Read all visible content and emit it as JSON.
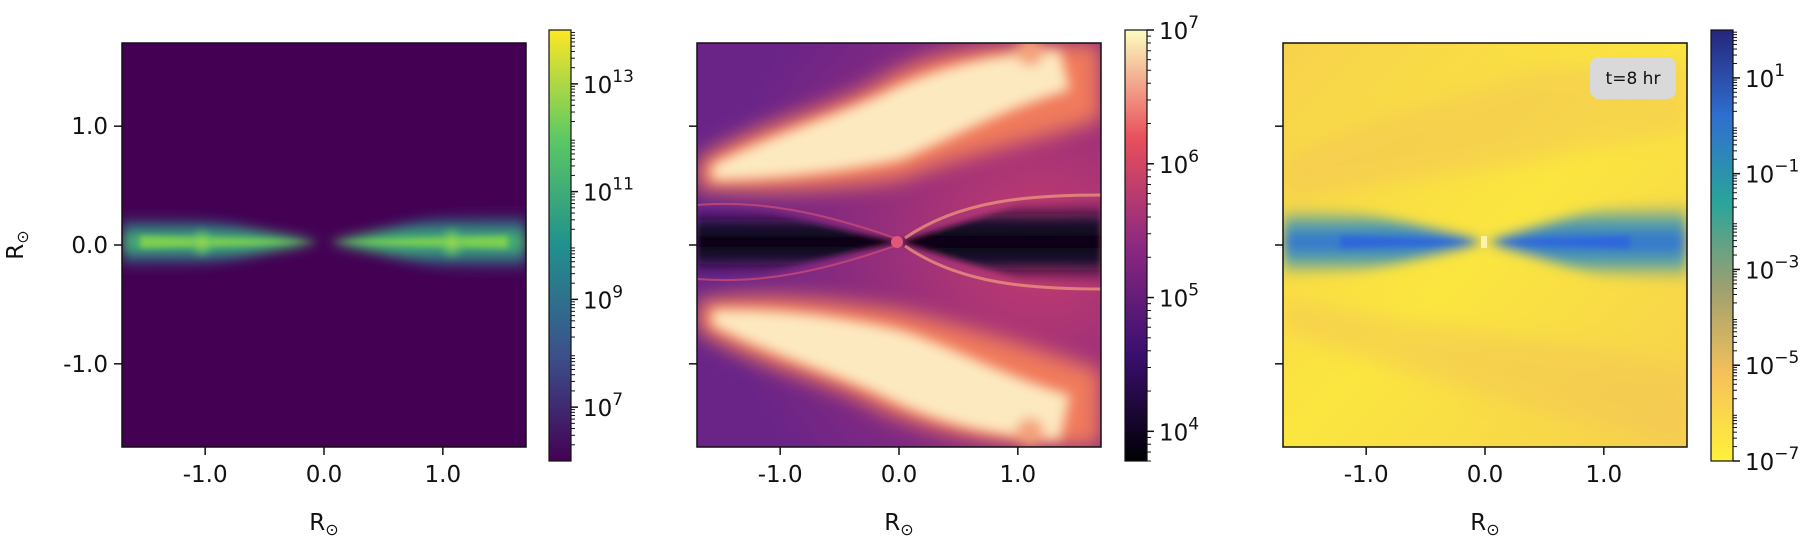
{
  "chart_data": [
    {
      "type": "heatmap",
      "colormap": "viridis",
      "colorbar_scale": "log",
      "colorbar_range": [
        1000000.0,
        100000000000000.0
      ],
      "colorbar_ticks": [
        {
          "value": 10000000.0,
          "base": "10",
          "exp": "7"
        },
        {
          "value": 1000000000.0,
          "base": "10",
          "exp": "9"
        },
        {
          "value": 100000000000.0,
          "base": "10",
          "exp": "11"
        },
        {
          "value": 10000000000000.0,
          "base": "10",
          "exp": "13"
        }
      ],
      "xlabel": {
        "base": "R",
        "sub": "⊙"
      },
      "ylabel": {
        "base": "R",
        "sub": "⊙"
      },
      "xlim": [
        -1.7,
        1.7
      ],
      "ylim": [
        -1.7,
        1.7
      ],
      "xticks": [
        "-1.0",
        "0.0",
        "1.0"
      ],
      "yticks": [
        "1.0",
        "0.0",
        "-1.0"
      ]
    },
    {
      "type": "heatmap",
      "colormap": "magma",
      "colorbar_scale": "log",
      "colorbar_range": [
        6000.0,
        10000000.0
      ],
      "colorbar_ticks": [
        {
          "value": 10000.0,
          "base": "10",
          "exp": "4"
        },
        {
          "value": 100000.0,
          "base": "10",
          "exp": "5"
        },
        {
          "value": 1000000.0,
          "base": "10",
          "exp": "6"
        },
        {
          "value": 10000000.0,
          "base": "10",
          "exp": "7"
        }
      ],
      "xlabel": {
        "base": "R",
        "sub": "⊙"
      },
      "xlim": [
        -1.7,
        1.7
      ],
      "ylim": [
        -1.7,
        1.7
      ],
      "xticks": [
        "-1.0",
        "0.0",
        "1.0"
      ]
    },
    {
      "type": "heatmap",
      "colormap": "plasma-like reversed (yellow to blue)",
      "colorbar_scale": "log",
      "colorbar_range": [
        1e-07,
        100.0
      ],
      "colorbar_ticks": [
        {
          "value": 1e-07,
          "base": "10",
          "exp": "−7"
        },
        {
          "value": 1e-05,
          "base": "10",
          "exp": "−5"
        },
        {
          "value": 0.001,
          "base": "10",
          "exp": "−3"
        },
        {
          "value": 0.1,
          "base": "10",
          "exp": "−1"
        },
        {
          "value": 10.0,
          "base": "10",
          "exp": "1"
        }
      ],
      "xlabel": {
        "base": "R",
        "sub": "⊙"
      },
      "xlim": [
        -1.7,
        1.7
      ],
      "ylim": [
        -1.7,
        1.7
      ],
      "xticks": [
        "-1.0",
        "0.0",
        "1.0"
      ],
      "annotation": "t=8 hr"
    }
  ],
  "colors": {
    "viridis_bg": "#440154",
    "magma_bg": "#7b2a84",
    "plasma_bg": "#f5e84a",
    "annotation_box": "#d9d9d9"
  }
}
